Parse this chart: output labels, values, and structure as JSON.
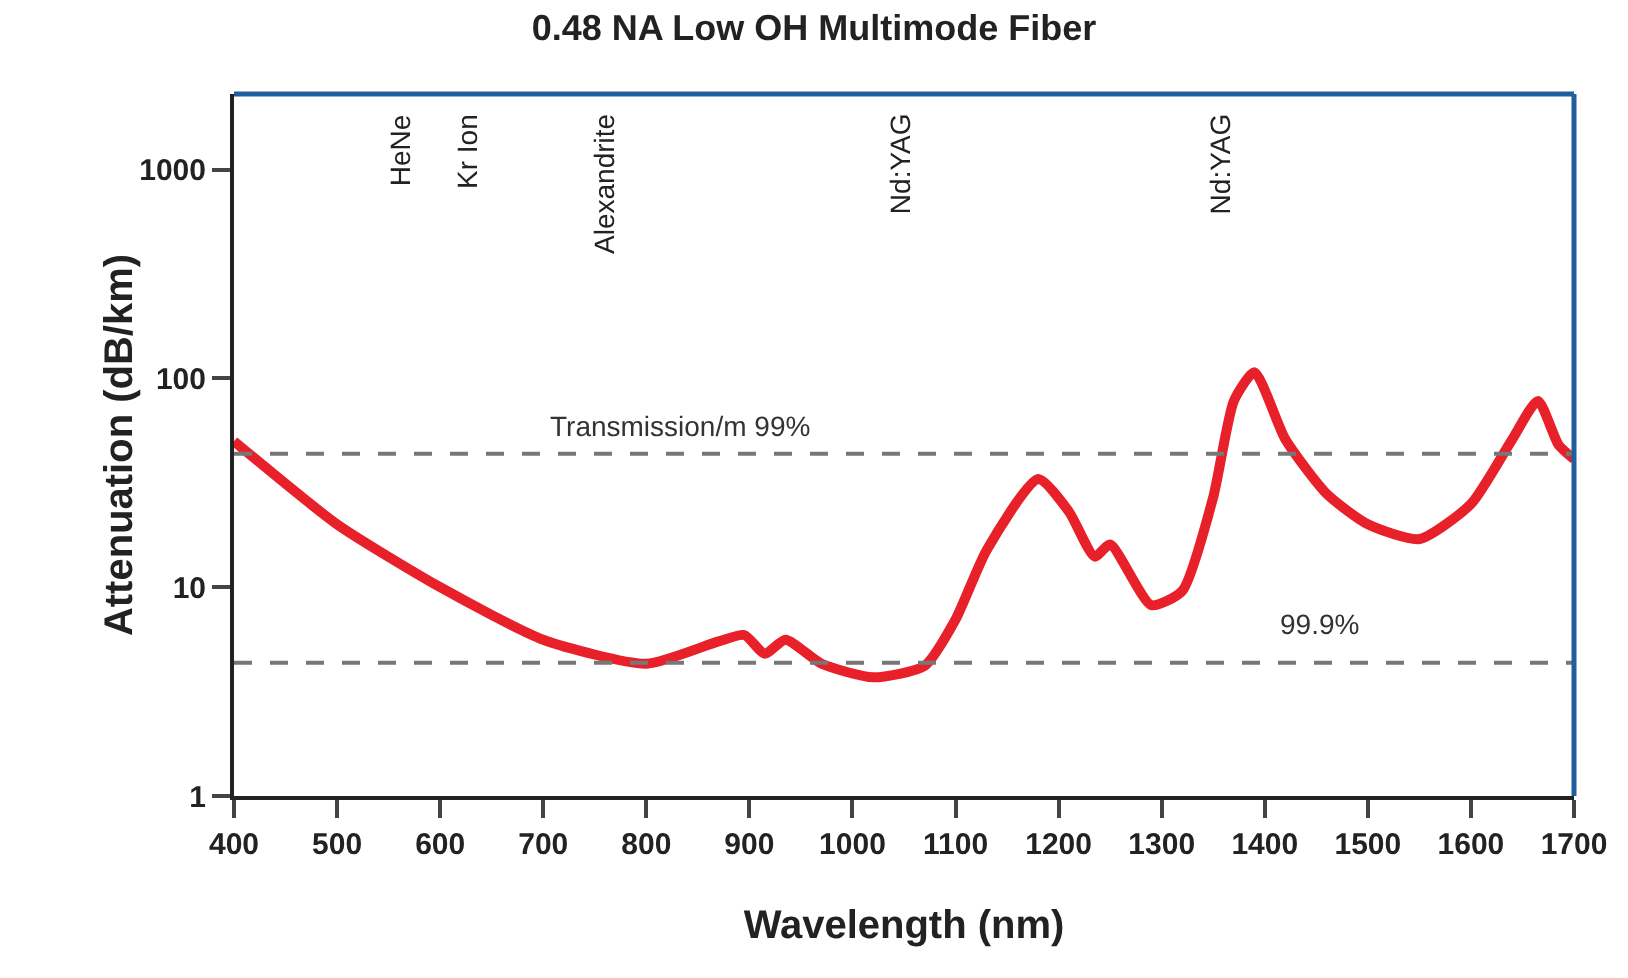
{
  "chart_data": {
    "type": "line",
    "title": "0.48 NA Low OH Multimode Fiber",
    "xlabel": "Wavelength (nm)",
    "ylabel": "Attenuation (dB/km)",
    "log": "y",
    "grid": false,
    "marker": "none",
    "line_style": "solid",
    "xlim": [
      400,
      1700
    ],
    "xticks": [
      400,
      500,
      600,
      700,
      800,
      900,
      1000,
      1100,
      1200,
      1300,
      1400,
      1500,
      1600,
      1700
    ],
    "ylim": [
      1,
      2300
    ],
    "yticks": [
      1,
      10,
      100,
      1000
    ],
    "series": [
      {
        "color": "#e8202a",
        "x": [
          400,
          500,
          600,
          700,
          800,
          870,
          895,
          915,
          935,
          970,
          1020,
          1070,
          1100,
          1130,
          1180,
          1210,
          1235,
          1250,
          1290,
          1320,
          1350,
          1370,
          1390,
          1420,
          1460,
          1500,
          1550,
          1600,
          1640,
          1665,
          1685,
          1700
        ],
        "values": [
          50,
          20,
          10,
          5.6,
          4.3,
          5.5,
          5.9,
          4.8,
          5.6,
          4.3,
          3.7,
          4.2,
          7,
          15,
          33,
          23,
          14,
          16,
          8.2,
          9.6,
          27,
          78,
          107,
          51,
          28,
          20,
          17,
          25,
          51,
          78,
          48,
          41
        ]
      }
    ],
    "ref_lines": [
      {
        "axis": "y",
        "value": 43.6,
        "color": "#777777",
        "line_style": "dashed"
      },
      {
        "axis": "y",
        "value": 4.35,
        "color": "#777777",
        "line_style": "dashed"
      }
    ],
    "annotations": [
      "HeNe",
      "Kr Ion",
      "Alexandrite",
      "Nd:YAG",
      "Nd:YAG",
      "Transmission/m 99%",
      "99.9%"
    ]
  }
}
